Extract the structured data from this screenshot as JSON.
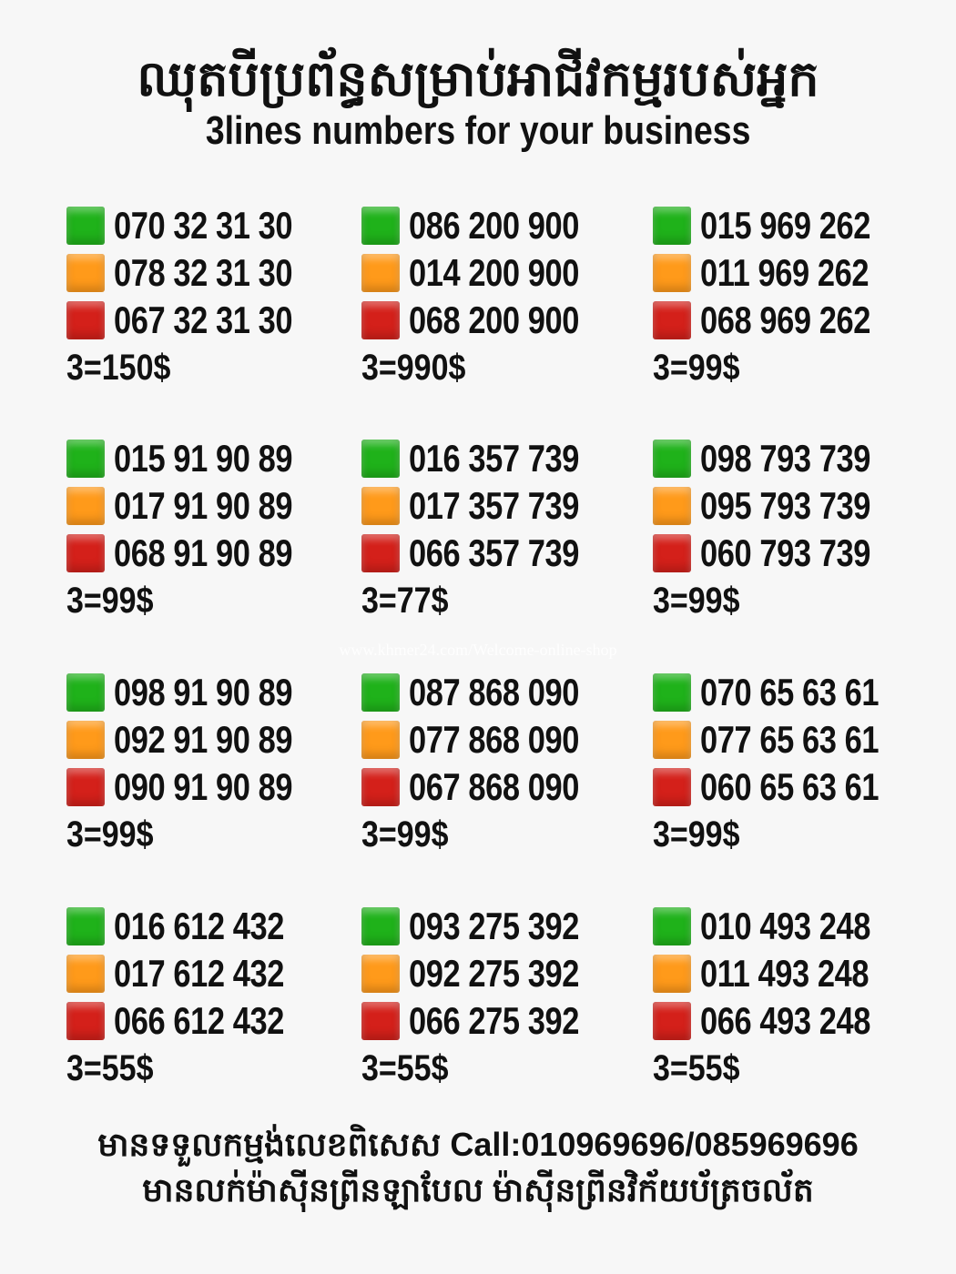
{
  "header": {
    "title_km": "ឈុតបីប្រព័ន្ធសម្រាប់អាជីវកម្មរបស់អ្នក",
    "title_en": "3lines numbers for your business"
  },
  "colors": {
    "green": "#1fb21a",
    "orange": "#ff9a1a",
    "red": "#d4201a"
  },
  "groups": [
    {
      "numbers": [
        "070 32 31 30",
        "078 32 31 30",
        "067 32 31 30"
      ],
      "price": "3=150$"
    },
    {
      "numbers": [
        "086 200 900",
        "014 200 900",
        "068 200 900"
      ],
      "price": "3=990$"
    },
    {
      "numbers": [
        "015 969 262",
        "011 969 262",
        "068 969 262"
      ],
      "price": "3=99$"
    },
    {
      "numbers": [
        "015 91 90 89",
        "017 91 90 89",
        "068 91 90 89"
      ],
      "price": "3=99$"
    },
    {
      "numbers": [
        "016 357 739",
        "017 357 739",
        "066 357 739"
      ],
      "price": "3=77$"
    },
    {
      "numbers": [
        "098 793 739",
        "095 793 739",
        "060 793 739"
      ],
      "price": "3=99$"
    },
    {
      "numbers": [
        "098 91 90 89",
        "092 91 90 89",
        "090 91 90 89"
      ],
      "price": "3=99$"
    },
    {
      "numbers": [
        "087 868 090",
        "077 868 090",
        "067 868 090"
      ],
      "price": "3=99$"
    },
    {
      "numbers": [
        "070 65 63 61",
        "077 65 63 61",
        "060 65 63 61"
      ],
      "price": "3=99$"
    },
    {
      "numbers": [
        "016 612 432",
        "017 612 432",
        "066 612 432"
      ],
      "price": "3=55$"
    },
    {
      "numbers": [
        "093 275 392",
        "092 275 392",
        "066 275 392"
      ],
      "price": "3=55$"
    },
    {
      "numbers": [
        "010 493 248",
        "011 493 248",
        "066 493 248"
      ],
      "price": "3=55$"
    }
  ],
  "watermark": "www.khmer24.com/Welcome-online-shop",
  "footer": {
    "line1": "មានទទួលកម្មង់លេខពិសេស Call:010969696/085969696",
    "line2": "មានលក់ម៉ាស៊ីនព្រីនឡាបែល ម៉ាស៊ីនព្រីនវិក័យប័ត្រចល័ត"
  }
}
